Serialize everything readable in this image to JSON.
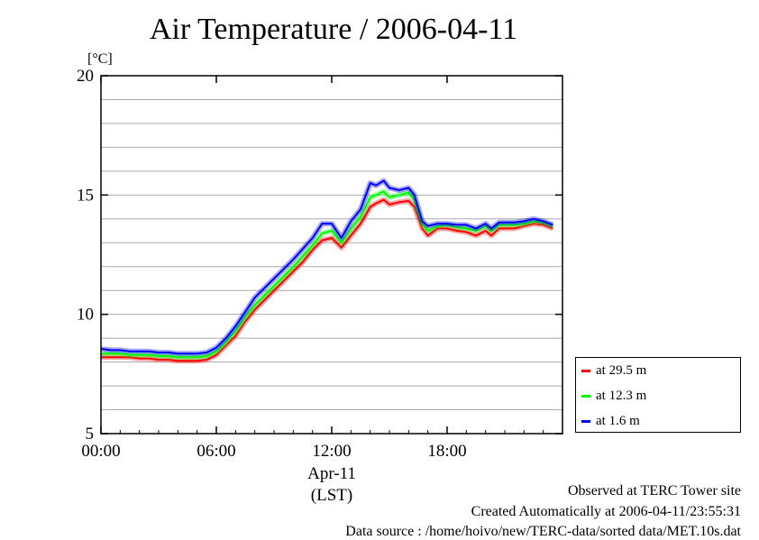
{
  "chart_data": {
    "type": "line",
    "title": "Air Temperature / 2006-04-11",
    "ylabel": "[°C]",
    "xlabel_date": "Apr-11",
    "xlabel_tz": "(LST)",
    "xlim": [
      0,
      24
    ],
    "ylim": [
      5,
      20
    ],
    "xticks": [
      {
        "value": 0,
        "label": "00:00"
      },
      {
        "value": 6,
        "label": "06:00"
      },
      {
        "value": 12,
        "label": "12:00"
      },
      {
        "value": 18,
        "label": "18:00"
      }
    ],
    "yticks": [
      {
        "value": 5,
        "label": "5"
      },
      {
        "value": 10,
        "label": "10"
      },
      {
        "value": 15,
        "label": "15"
      },
      {
        "value": 20,
        "label": "20"
      }
    ],
    "grid": true,
    "legend_position": "outside-right-bottom",
    "x": [
      0,
      0.5,
      1,
      1.5,
      2,
      2.5,
      3,
      3.5,
      4,
      4.5,
      5,
      5.5,
      6,
      6.5,
      7,
      7.5,
      8,
      8.5,
      9,
      9.5,
      10,
      10.5,
      11,
      11.5,
      12,
      12.5,
      13,
      13.5,
      14,
      14.3,
      14.7,
      15,
      15.5,
      16,
      16.3,
      16.7,
      17,
      17.5,
      18,
      18.5,
      19,
      19.5,
      20,
      20.3,
      20.7,
      21,
      21.5,
      22,
      22.5,
      23,
      23.5
    ],
    "series": [
      {
        "name": "at 29.5 m",
        "color": "#ff0000",
        "values": [
          8.2,
          8.2,
          8.2,
          8.2,
          8.15,
          8.15,
          8.1,
          8.1,
          8.05,
          8.05,
          8.05,
          8.1,
          8.3,
          8.7,
          9.1,
          9.7,
          10.2,
          10.6,
          11.0,
          11.4,
          11.8,
          12.2,
          12.7,
          13.1,
          13.2,
          12.8,
          13.3,
          13.8,
          14.5,
          14.65,
          14.8,
          14.6,
          14.7,
          14.75,
          14.5,
          13.6,
          13.3,
          13.6,
          13.6,
          13.5,
          13.45,
          13.3,
          13.5,
          13.3,
          13.6,
          13.6,
          13.6,
          13.7,
          13.8,
          13.75,
          13.6
        ]
      },
      {
        "name": "at 12.3 m",
        "color": "#00ff00",
        "values": [
          8.35,
          8.35,
          8.35,
          8.3,
          8.3,
          8.3,
          8.25,
          8.25,
          8.2,
          8.2,
          8.2,
          8.25,
          8.45,
          8.85,
          9.3,
          9.9,
          10.4,
          10.8,
          11.2,
          11.6,
          12.0,
          12.45,
          12.9,
          13.4,
          13.5,
          13.0,
          13.6,
          14.1,
          14.9,
          15.0,
          15.15,
          14.9,
          15.0,
          15.1,
          14.8,
          13.8,
          13.5,
          13.7,
          13.75,
          13.65,
          13.6,
          13.5,
          13.7,
          13.5,
          13.75,
          13.75,
          13.75,
          13.8,
          13.9,
          13.85,
          13.7
        ]
      },
      {
        "name": "at 1.6 m",
        "color": "#0000ff",
        "values": [
          8.55,
          8.5,
          8.5,
          8.45,
          8.45,
          8.45,
          8.4,
          8.4,
          8.35,
          8.35,
          8.35,
          8.4,
          8.6,
          9.0,
          9.5,
          10.1,
          10.7,
          11.1,
          11.5,
          11.9,
          12.3,
          12.75,
          13.2,
          13.8,
          13.8,
          13.2,
          13.9,
          14.4,
          15.5,
          15.4,
          15.6,
          15.3,
          15.2,
          15.3,
          15.0,
          13.9,
          13.7,
          13.8,
          13.8,
          13.75,
          13.75,
          13.6,
          13.8,
          13.6,
          13.85,
          13.85,
          13.85,
          13.9,
          14.0,
          13.9,
          13.75
        ]
      }
    ]
  },
  "footer": {
    "line1": "Observed at TERC Tower site",
    "line2": "Created Automatically at 2006-04-11/23:55:31",
    "line3": "Data source : /home/hoivo/new/TERC-data/sorted  data/MET.10s.dat"
  }
}
